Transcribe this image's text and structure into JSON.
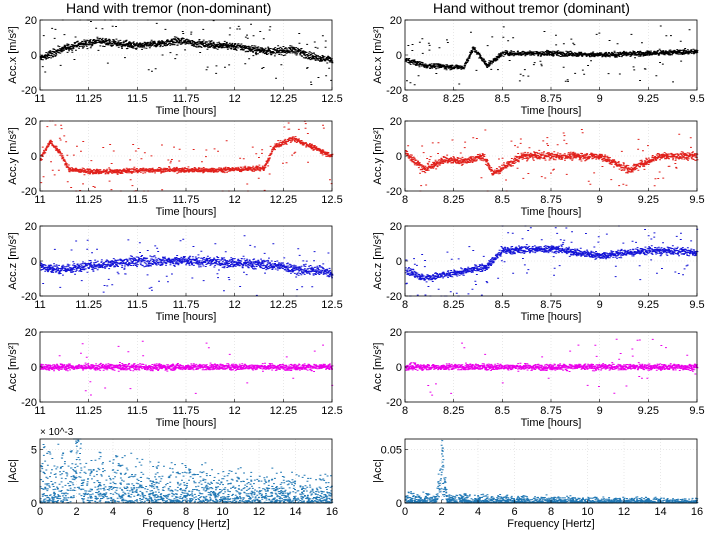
{
  "titles": {
    "left": "Hand with tremor (non-dominant)",
    "right": "Hand without tremor (dominant)"
  },
  "chart_data": [
    {
      "id": "left-accx",
      "type": "scatter",
      "color": "#000000",
      "ylabel": "Acc.x [m/s²]",
      "xlabel": "Time [hours]",
      "xlim": [
        11,
        12.5
      ],
      "ylim": [
        -20,
        20
      ],
      "xticks": [
        "11",
        "11.25",
        "11.5",
        "11.75",
        "12",
        "12.25",
        "12.5"
      ],
      "yticks": [
        "-20",
        "0",
        "20"
      ],
      "profile": {
        "x": [
          11,
          11.1,
          11.2,
          11.3,
          11.5,
          11.7,
          11.85,
          12,
          12.1,
          12.2,
          12.3,
          12.4,
          12.5
        ],
        "y": [
          -2,
          3,
          6,
          8,
          5,
          8,
          6,
          5,
          3,
          2,
          3,
          -1,
          -3
        ]
      },
      "noise": 3,
      "spikes": 0.06
    },
    {
      "id": "left-accy",
      "type": "scatter",
      "color": "#e0201b",
      "ylabel": "Acc.y [m/s²]",
      "xlabel": "Time [hours]",
      "xlim": [
        11,
        12.5
      ],
      "ylim": [
        -20,
        20
      ],
      "xticks": [
        "11",
        "11.25",
        "11.5",
        "11.75",
        "12",
        "12.25",
        "12.5"
      ],
      "yticks": [
        "-20",
        "0",
        "20"
      ],
      "profile": {
        "x": [
          11,
          11.05,
          11.1,
          11.15,
          11.3,
          11.6,
          11.9,
          12.15,
          12.2,
          12.3,
          12.4,
          12.5
        ],
        "y": [
          -2,
          8,
          2,
          -8,
          -9,
          -8,
          -8,
          -7,
          5,
          10,
          5,
          0
        ]
      },
      "noise": 2,
      "spikes": 0.07
    },
    {
      "id": "left-accz",
      "type": "scatter",
      "color": "#1414d6",
      "ylabel": "Acc.z [m/s²]",
      "xlabel": "Time [hours]",
      "xlim": [
        11,
        12.5
      ],
      "ylim": [
        -20,
        20
      ],
      "xticks": [
        "11",
        "11.25",
        "11.5",
        "11.75",
        "12",
        "12.25",
        "12.5"
      ],
      "yticks": [
        "-20",
        "0",
        "20"
      ],
      "profile": {
        "x": [
          11,
          11.1,
          11.3,
          11.5,
          11.75,
          12,
          12.15,
          12.25,
          12.35,
          12.45,
          12.5
        ],
        "y": [
          -3,
          -5,
          -2,
          0,
          0,
          -1,
          -2,
          -3,
          -6,
          -5,
          -8
        ]
      },
      "noise": 4,
      "spikes": 0.05
    },
    {
      "id": "left-acc",
      "type": "scatter",
      "color": "#ea00ea",
      "ylabel": "Acc [m/s²]",
      "xlabel": "Time [hours]",
      "xlim": [
        11,
        12.5
      ],
      "ylim": [
        -20,
        20
      ],
      "xticks": [
        "11",
        "11.25",
        "11.5",
        "11.75",
        "12",
        "12.25",
        "12.5"
      ],
      "yticks": [
        "-20",
        "0",
        "20"
      ],
      "profile": {
        "x": [
          11,
          12.5
        ],
        "y": [
          0,
          0
        ]
      },
      "noise": 2.5,
      "spikes": 0.02
    },
    {
      "id": "left-fft",
      "type": "scatter",
      "color": "#1f77b4",
      "ylabel": "|Acc|",
      "xlabel": "Frequency [Hertz]",
      "exponent": "× 10^-3",
      "xlim": [
        0,
        16
      ],
      "ylim": [
        0,
        0.006
      ],
      "xticks": [
        "0",
        "2",
        "4",
        "6",
        "8",
        "10",
        "12",
        "14",
        "16"
      ],
      "ytick_values": [
        0,
        0.005
      ],
      "yticks": [
        "0",
        "5"
      ],
      "peak": 2,
      "base": 0.0025,
      "decay": 0.004,
      "peak_height": 0.0065
    },
    {
      "id": "right-accx",
      "type": "scatter",
      "color": "#000000",
      "ylabel": "Acc.x [m/s²]",
      "xlabel": "Time [hours]",
      "xlim": [
        8,
        9.5
      ],
      "ylim": [
        -20,
        20
      ],
      "xticks": [
        "8",
        "8.25",
        "8.5",
        "8.75",
        "9",
        "9.25",
        "9.5"
      ],
      "yticks": [
        "-20",
        "0",
        "20"
      ],
      "profile": {
        "x": [
          8,
          8.1,
          8.3,
          8.35,
          8.42,
          8.5,
          8.75,
          9,
          9.25,
          9.5
        ],
        "y": [
          -3,
          -6,
          -7,
          4,
          -6,
          1,
          1,
          0,
          1,
          2
        ]
      },
      "noise": 2,
      "spikes": 0.05
    },
    {
      "id": "right-accy",
      "type": "scatter",
      "color": "#e0201b",
      "ylabel": "Acc.y [m/s²]",
      "xlabel": "Time [hours]",
      "xlim": [
        8,
        9.5
      ],
      "ylim": [
        -20,
        20
      ],
      "xticks": [
        "8",
        "8.25",
        "8.5",
        "8.75",
        "9",
        "9.25",
        "9.5"
      ],
      "yticks": [
        "-20",
        "0",
        "20"
      ],
      "profile": {
        "x": [
          8,
          8.1,
          8.2,
          8.3,
          8.4,
          8.45,
          8.6,
          8.8,
          9,
          9.15,
          9.3,
          9.5
        ],
        "y": [
          2,
          -8,
          -2,
          -3,
          0,
          -10,
          0,
          0,
          0,
          -8,
          0,
          0
        ]
      },
      "noise": 3,
      "spikes": 0.07
    },
    {
      "id": "right-accz",
      "type": "scatter",
      "color": "#1414d6",
      "ylabel": "Acc.z [m/s²]",
      "xlabel": "Time [hours]",
      "xlim": [
        8,
        9.5
      ],
      "ylim": [
        -20,
        20
      ],
      "xticks": [
        "8",
        "8.25",
        "8.5",
        "8.75",
        "9",
        "9.25",
        "9.5"
      ],
      "yticks": [
        "-20",
        "0",
        "20"
      ],
      "profile": {
        "x": [
          8,
          8.1,
          8.2,
          8.3,
          8.42,
          8.5,
          8.75,
          9,
          9.25,
          9.5
        ],
        "y": [
          -5,
          -10,
          -8,
          -6,
          -3,
          6,
          7,
          3,
          6,
          5
        ]
      },
      "noise": 3,
      "spikes": 0.06
    },
    {
      "id": "right-acc",
      "type": "scatter",
      "color": "#ea00ea",
      "ylabel": "Acc [m/s²]",
      "xlabel": "Time [hours]",
      "xlim": [
        8,
        9.5
      ],
      "ylim": [
        -20,
        20
      ],
      "xticks": [
        "8",
        "8.25",
        "8.5",
        "8.75",
        "9",
        "9.25",
        "9.5"
      ],
      "yticks": [
        "-20",
        "0",
        "20"
      ],
      "profile": {
        "x": [
          8,
          9.5
        ],
        "y": [
          0,
          0
        ]
      },
      "noise": 2.5,
      "spikes": 0.02
    },
    {
      "id": "right-fft",
      "type": "scatter",
      "color": "#1f77b4",
      "ylabel": "|Acc|",
      "xlabel": "Frequency [Hertz]",
      "xlim": [
        0,
        16
      ],
      "ylim": [
        0,
        0.06
      ],
      "xticks": [
        "0",
        "2",
        "4",
        "6",
        "8",
        "10",
        "12",
        "14",
        "16"
      ],
      "ytick_values": [
        0,
        0.05
      ],
      "yticks": [
        "0",
        "0.05"
      ],
      "peak": 2,
      "base": 0.005,
      "decay": 0.004,
      "peak_height": 0.062
    }
  ]
}
